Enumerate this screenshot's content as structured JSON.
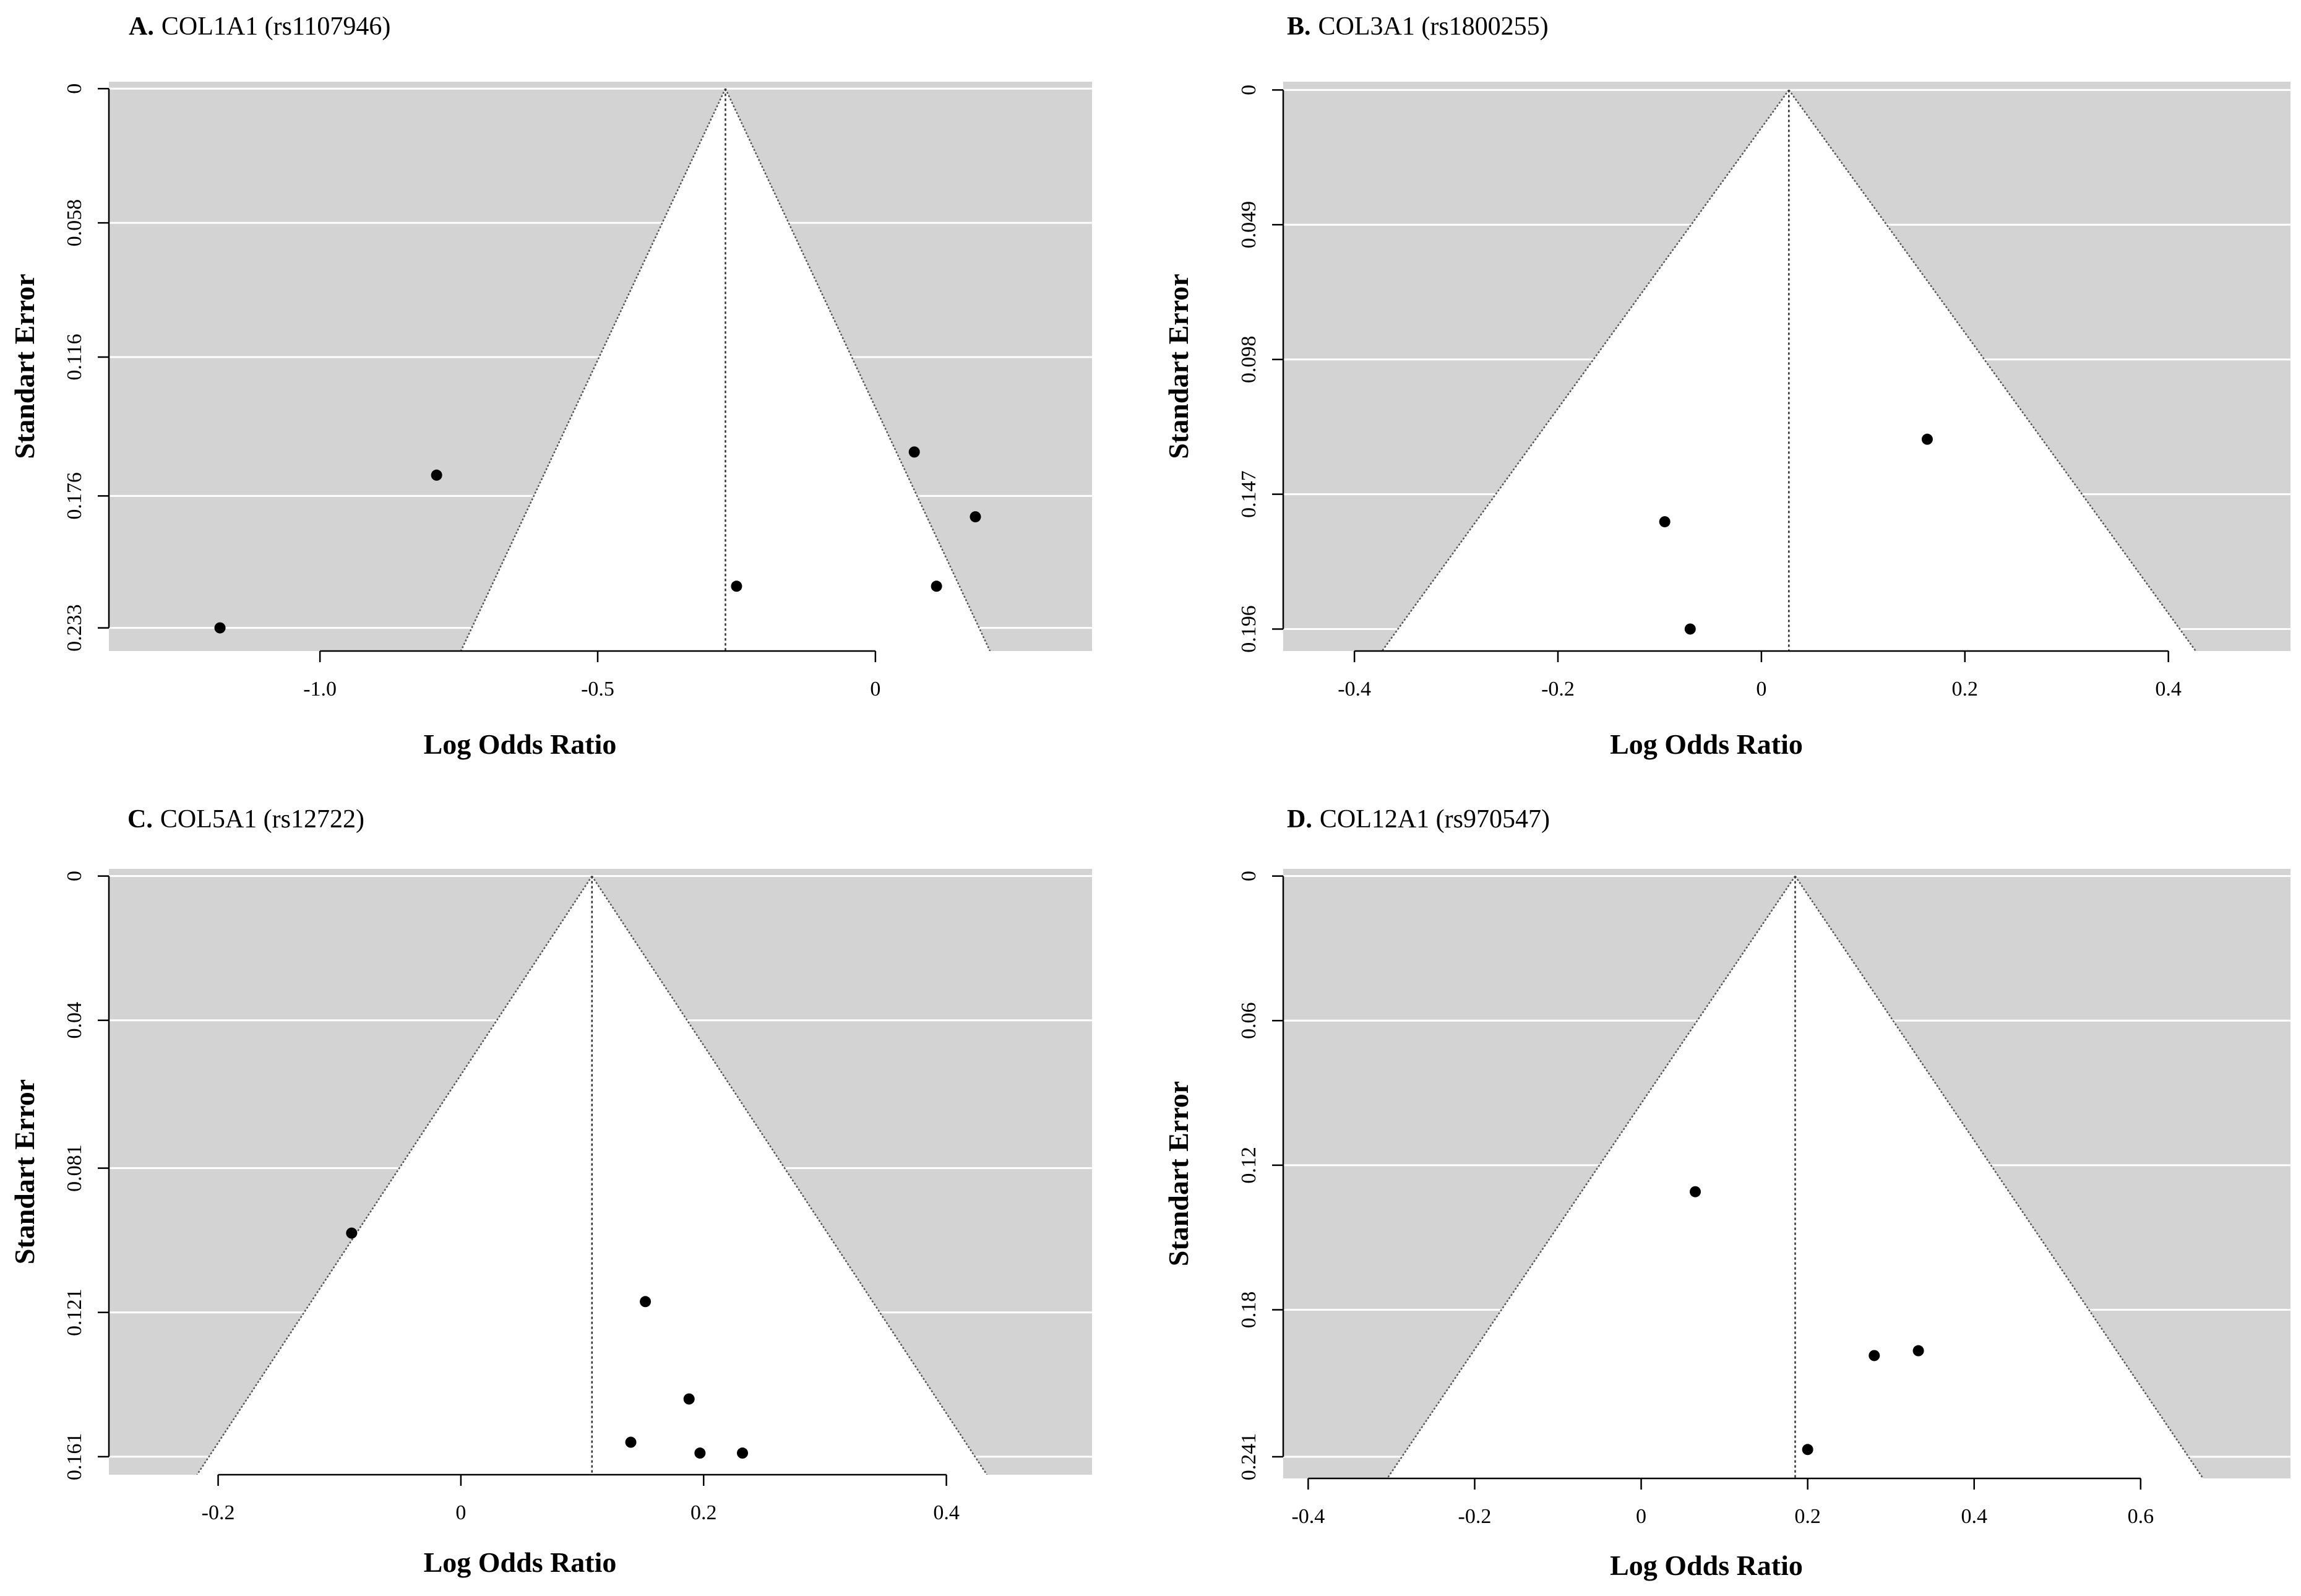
{
  "figure": {
    "xlabel": "Log Odds Ratio",
    "ylabel": "Standart Error",
    "colors": {
      "plot_background": "#d3d3d3",
      "funnel_fill": "#ffffff",
      "gridline": "#ffffff",
      "points": "#000000",
      "axis": "#000000"
    }
  },
  "chart_data": [
    {
      "type": "scatter",
      "subtype": "funnel",
      "panel_letter": "A.",
      "title": "COL1A1 (rs1107946)",
      "xlabel": "Log Odds Ratio",
      "ylabel": "Standart Error",
      "center_estimate": -0.27,
      "se_max": 0.233,
      "xlim": [
        -1.38,
        0.39
      ],
      "ylim": [
        0.243,
        -0.003
      ],
      "x_ticks": [
        -1.0,
        -0.5,
        0
      ],
      "x_tick_labels": [
        "-1.0",
        "-0.5",
        "0"
      ],
      "y_ticks": [
        0,
        0.058,
        0.116,
        0.176,
        0.233
      ],
      "y_tick_labels": [
        "0",
        "0.058",
        "0.116",
        "0.176",
        "0.233"
      ],
      "points": [
        {
          "x": -1.18,
          "y": 0.233
        },
        {
          "x": -0.79,
          "y": 0.167
        },
        {
          "x": 0.07,
          "y": 0.157
        },
        {
          "x": 0.18,
          "y": 0.185
        },
        {
          "x": -0.25,
          "y": 0.215
        },
        {
          "x": 0.11,
          "y": 0.215
        }
      ]
    },
    {
      "type": "scatter",
      "subtype": "funnel",
      "panel_letter": "B.",
      "title": "COL3A1 (rs1800255)",
      "xlabel": "Log Odds Ratio",
      "ylabel": "Standart Error",
      "center_estimate": 0.027,
      "se_max": 0.196,
      "xlim": [
        -0.47,
        0.52
      ],
      "ylim": [
        0.204,
        -0.003
      ],
      "x_ticks": [
        -0.4,
        -0.2,
        0,
        0.2,
        0.4
      ],
      "x_tick_labels": [
        "-0.4",
        "-0.2",
        "0",
        "0.2",
        "0.4"
      ],
      "y_ticks": [
        0,
        0.049,
        0.098,
        0.147,
        0.196
      ],
      "y_tick_labels": [
        "0",
        "0.049",
        "0.098",
        "0.147",
        "0.196"
      ],
      "points": [
        {
          "x": 0.163,
          "y": 0.127
        },
        {
          "x": -0.095,
          "y": 0.157
        },
        {
          "x": -0.07,
          "y": 0.196
        }
      ]
    },
    {
      "type": "scatter",
      "subtype": "funnel",
      "panel_letter": "C.",
      "title": "COL5A1 (rs12722)",
      "xlabel": "Log Odds Ratio",
      "ylabel": "Standart Error",
      "center_estimate": 0.108,
      "se_max": 0.161,
      "xlim": [
        -0.29,
        0.52
      ],
      "ylim": [
        0.166,
        -0.002
      ],
      "x_ticks": [
        -0.2,
        0,
        0.2,
        0.4
      ],
      "x_tick_labels": [
        "-0.2",
        "0",
        "0.2",
        "0.4"
      ],
      "y_ticks": [
        0,
        0.04,
        0.081,
        0.121,
        0.161
      ],
      "y_tick_labels": [
        "0",
        "0.04",
        "0.081",
        "0.121",
        "0.161"
      ],
      "points": [
        {
          "x": -0.09,
          "y": 0.099
        },
        {
          "x": 0.152,
          "y": 0.118
        },
        {
          "x": 0.188,
          "y": 0.145
        },
        {
          "x": 0.14,
          "y": 0.157
        },
        {
          "x": 0.197,
          "y": 0.16
        },
        {
          "x": 0.232,
          "y": 0.16
        }
      ]
    },
    {
      "type": "scatter",
      "subtype": "funnel",
      "panel_letter": "D.",
      "title": "COL12A1 (rs970547)",
      "xlabel": "Log Odds Ratio",
      "ylabel": "Standart Error",
      "center_estimate": 0.185,
      "se_max": 0.241,
      "xlim": [
        -0.43,
        0.78
      ],
      "ylim": [
        0.25,
        -0.003
      ],
      "x_ticks": [
        -0.4,
        -0.2,
        0,
        0.2,
        0.4,
        0.6
      ],
      "x_tick_labels": [
        "-0.4",
        "-0.2",
        "0",
        "0.2",
        "0.4",
        "0.6"
      ],
      "y_ticks": [
        0,
        0.06,
        0.12,
        0.18,
        0.241
      ],
      "y_tick_labels": [
        "0",
        "0.06",
        "0.12",
        "0.18",
        "0.241"
      ],
      "points": [
        {
          "x": 0.065,
          "y": 0.131
        },
        {
          "x": 0.28,
          "y": 0.199
        },
        {
          "x": 0.333,
          "y": 0.197
        },
        {
          "x": 0.2,
          "y": 0.238
        }
      ]
    }
  ]
}
